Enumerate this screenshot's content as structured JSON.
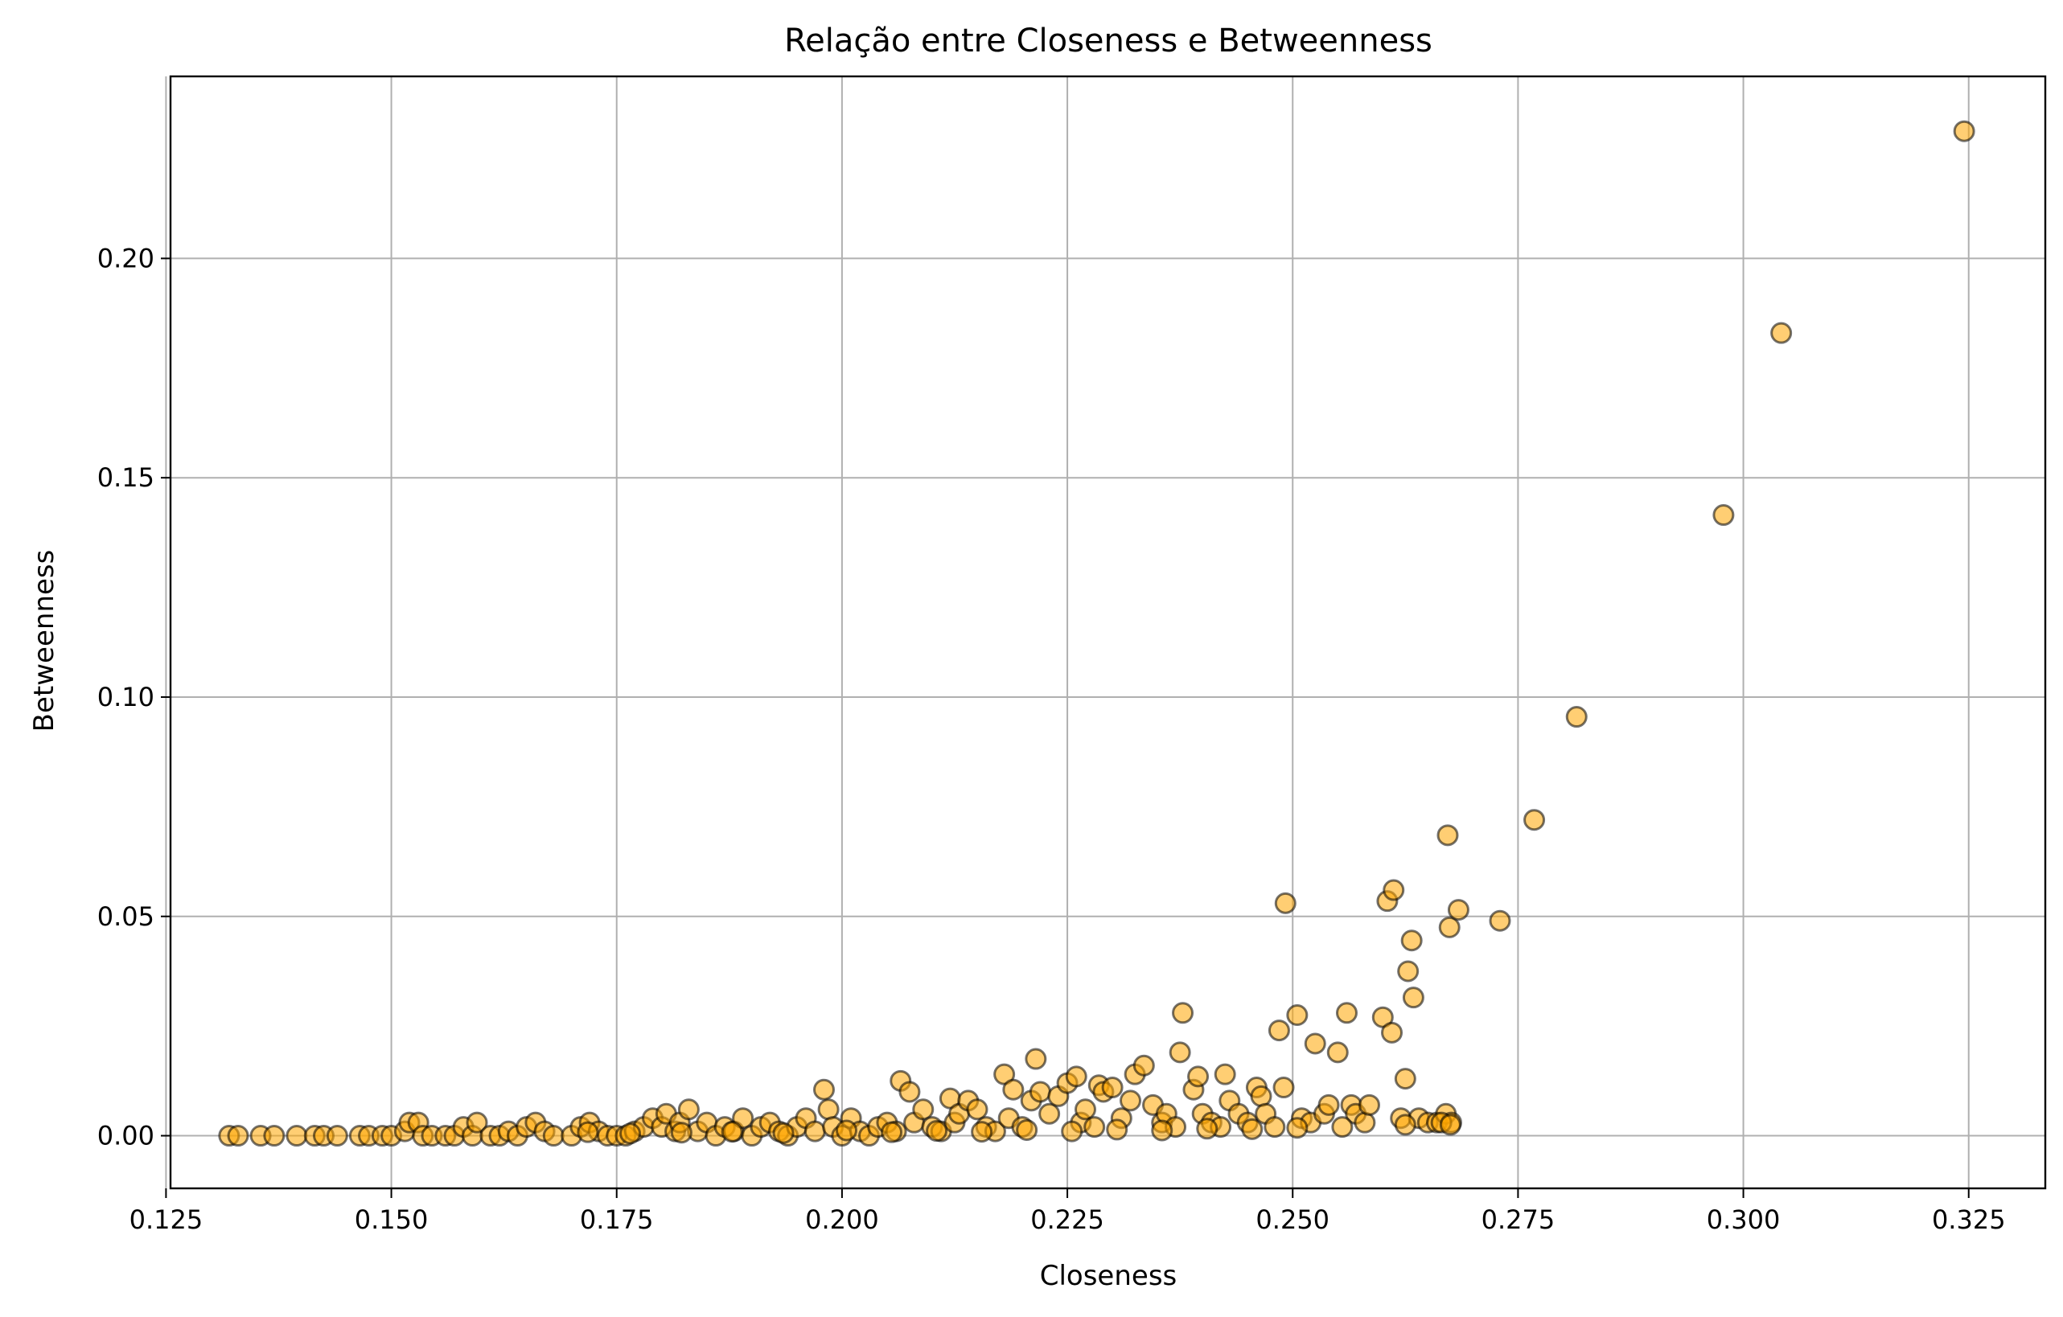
{
  "chart_data": {
    "type": "scatter",
    "title": "Relação entre Closeness e Betweenness",
    "xlabel": "Closeness",
    "ylabel": "Betweenness",
    "xlim": [
      0.1255,
      0.3335
    ],
    "ylim": [
      -0.012,
      0.2415
    ],
    "xticks": [
      0.125,
      0.15,
      0.175,
      0.2,
      0.225,
      0.25,
      0.275,
      0.3,
      0.325
    ],
    "xtick_labels": [
      "0.125",
      "0.150",
      "0.175",
      "0.200",
      "0.225",
      "0.250",
      "0.275",
      "0.300",
      "0.325"
    ],
    "yticks": [
      0.0,
      0.05,
      0.1,
      0.15,
      0.2
    ],
    "ytick_labels": [
      "0.00",
      "0.05",
      "0.10",
      "0.15",
      "0.20"
    ],
    "grid": true,
    "marker_color": "#FFA500",
    "marker_edge_color": "#000000",
    "marker_alpha": 0.55,
    "points": [
      [
        0.132,
        0.0
      ],
      [
        0.133,
        0.0
      ],
      [
        0.1355,
        0.0
      ],
      [
        0.137,
        0.0
      ],
      [
        0.1395,
        0.0
      ],
      [
        0.1415,
        0.0
      ],
      [
        0.1425,
        0.0
      ],
      [
        0.144,
        0.0
      ],
      [
        0.1465,
        0.0
      ],
      [
        0.1475,
        0.0
      ],
      [
        0.149,
        0.0
      ],
      [
        0.15,
        0.0
      ],
      [
        0.1515,
        0.001
      ],
      [
        0.152,
        0.003
      ],
      [
        0.153,
        0.003
      ],
      [
        0.1535,
        0.0
      ],
      [
        0.1545,
        0.0
      ],
      [
        0.156,
        0.0
      ],
      [
        0.157,
        0.0
      ],
      [
        0.158,
        0.002
      ],
      [
        0.159,
        0.0
      ],
      [
        0.1595,
        0.003
      ],
      [
        0.161,
        0.0
      ],
      [
        0.162,
        0.0
      ],
      [
        0.163,
        0.001
      ],
      [
        0.164,
        0.0
      ],
      [
        0.165,
        0.002
      ],
      [
        0.166,
        0.003
      ],
      [
        0.167,
        0.001
      ],
      [
        0.168,
        0.0
      ],
      [
        0.17,
        0.0
      ],
      [
        0.171,
        0.002
      ],
      [
        0.172,
        0.003
      ],
      [
        0.173,
        0.001
      ],
      [
        0.174,
        0.0
      ],
      [
        0.175,
        0.0
      ],
      [
        0.176,
        0.0
      ],
      [
        0.177,
        0.001
      ],
      [
        0.178,
        0.002
      ],
      [
        0.179,
        0.004
      ],
      [
        0.18,
        0.002
      ],
      [
        0.1805,
        0.005
      ],
      [
        0.1815,
        0.001
      ],
      [
        0.182,
        0.003
      ],
      [
        0.183,
        0.006
      ],
      [
        0.184,
        0.001
      ],
      [
        0.185,
        0.003
      ],
      [
        0.186,
        0.0
      ],
      [
        0.187,
        0.002
      ],
      [
        0.188,
        0.001
      ],
      [
        0.189,
        0.004
      ],
      [
        0.19,
        0.0
      ],
      [
        0.191,
        0.002
      ],
      [
        0.192,
        0.003
      ],
      [
        0.193,
        0.001
      ],
      [
        0.194,
        0.0
      ],
      [
        0.195,
        0.002
      ],
      [
        0.196,
        0.004
      ],
      [
        0.197,
        0.001
      ],
      [
        0.198,
        0.0105
      ],
      [
        0.1985,
        0.006
      ],
      [
        0.199,
        0.002
      ],
      [
        0.2,
        0.0
      ],
      [
        0.201,
        0.004
      ],
      [
        0.202,
        0.001
      ],
      [
        0.203,
        0.0
      ],
      [
        0.204,
        0.002
      ],
      [
        0.205,
        0.003
      ],
      [
        0.206,
        0.001
      ],
      [
        0.2065,
        0.0125
      ],
      [
        0.2075,
        0.01
      ],
      [
        0.208,
        0.003
      ],
      [
        0.209,
        0.006
      ],
      [
        0.21,
        0.002
      ],
      [
        0.211,
        0.001
      ],
      [
        0.212,
        0.0085
      ],
      [
        0.2125,
        0.003
      ],
      [
        0.213,
        0.005
      ],
      [
        0.214,
        0.008
      ],
      [
        0.215,
        0.006
      ],
      [
        0.216,
        0.002
      ],
      [
        0.217,
        0.001
      ],
      [
        0.218,
        0.014
      ],
      [
        0.2185,
        0.004
      ],
      [
        0.219,
        0.0105
      ],
      [
        0.22,
        0.002
      ],
      [
        0.221,
        0.008
      ],
      [
        0.2215,
        0.0175
      ],
      [
        0.222,
        0.01
      ],
      [
        0.223,
        0.005
      ],
      [
        0.224,
        0.009
      ],
      [
        0.225,
        0.012
      ],
      [
        0.226,
        0.0135
      ],
      [
        0.2265,
        0.003
      ],
      [
        0.227,
        0.006
      ],
      [
        0.228,
        0.002
      ],
      [
        0.2285,
        0.0115
      ],
      [
        0.229,
        0.01
      ],
      [
        0.23,
        0.011
      ],
      [
        0.231,
        0.004
      ],
      [
        0.232,
        0.008
      ],
      [
        0.2325,
        0.014
      ],
      [
        0.2335,
        0.016
      ],
      [
        0.2345,
        0.007
      ],
      [
        0.2355,
        0.003
      ],
      [
        0.236,
        0.005
      ],
      [
        0.237,
        0.002
      ],
      [
        0.2375,
        0.019
      ],
      [
        0.2378,
        0.028
      ],
      [
        0.239,
        0.0105
      ],
      [
        0.2395,
        0.0135
      ],
      [
        0.24,
        0.005
      ],
      [
        0.241,
        0.003
      ],
      [
        0.242,
        0.002
      ],
      [
        0.2425,
        0.014
      ],
      [
        0.243,
        0.008
      ],
      [
        0.244,
        0.005
      ],
      [
        0.245,
        0.003
      ],
      [
        0.246,
        0.011
      ],
      [
        0.2465,
        0.009
      ],
      [
        0.247,
        0.005
      ],
      [
        0.248,
        0.002
      ],
      [
        0.2485,
        0.024
      ],
      [
        0.249,
        0.011
      ],
      [
        0.2492,
        0.053
      ],
      [
        0.2505,
        0.0275
      ],
      [
        0.251,
        0.004
      ],
      [
        0.252,
        0.003
      ],
      [
        0.2525,
        0.021
      ],
      [
        0.2535,
        0.005
      ],
      [
        0.254,
        0.007
      ],
      [
        0.255,
        0.019
      ],
      [
        0.256,
        0.028
      ],
      [
        0.2565,
        0.007
      ],
      [
        0.257,
        0.005
      ],
      [
        0.258,
        0.003
      ],
      [
        0.2585,
        0.007
      ],
      [
        0.26,
        0.027
      ],
      [
        0.2605,
        0.0535
      ],
      [
        0.261,
        0.0235
      ],
      [
        0.2612,
        0.056
      ],
      [
        0.262,
        0.004
      ],
      [
        0.2625,
        0.013
      ],
      [
        0.2628,
        0.0375
      ],
      [
        0.2632,
        0.0445
      ],
      [
        0.2634,
        0.0315
      ],
      [
        0.264,
        0.004
      ],
      [
        0.265,
        0.003
      ],
      [
        0.266,
        0.003
      ],
      [
        0.267,
        0.005
      ],
      [
        0.2672,
        0.0685
      ],
      [
        0.2674,
        0.0475
      ],
      [
        0.2676,
        0.003
      ],
      [
        0.2684,
        0.0515
      ],
      [
        0.273,
        0.049
      ],
      [
        0.2768,
        0.072
      ],
      [
        0.2815,
        0.0955
      ],
      [
        0.2978,
        0.1415
      ],
      [
        0.3042,
        0.183
      ],
      [
        0.3245,
        0.229
      ],
      [
        0.1718,
        0.0008
      ],
      [
        0.1765,
        0.0005
      ],
      [
        0.1822,
        0.0007
      ],
      [
        0.1878,
        0.0009
      ],
      [
        0.1935,
        0.0006
      ],
      [
        0.2005,
        0.0012
      ],
      [
        0.2055,
        0.0008
      ],
      [
        0.2105,
        0.0011
      ],
      [
        0.2155,
        0.0009
      ],
      [
        0.2205,
        0.0013
      ],
      [
        0.2255,
        0.001
      ],
      [
        0.2305,
        0.0014
      ],
      [
        0.2355,
        0.0012
      ],
      [
        0.2405,
        0.0016
      ],
      [
        0.2455,
        0.0015
      ],
      [
        0.2505,
        0.0018
      ],
      [
        0.2555,
        0.002
      ],
      [
        0.2625,
        0.0025
      ],
      [
        0.2665,
        0.003
      ],
      [
        0.2675,
        0.0025
      ]
    ]
  }
}
